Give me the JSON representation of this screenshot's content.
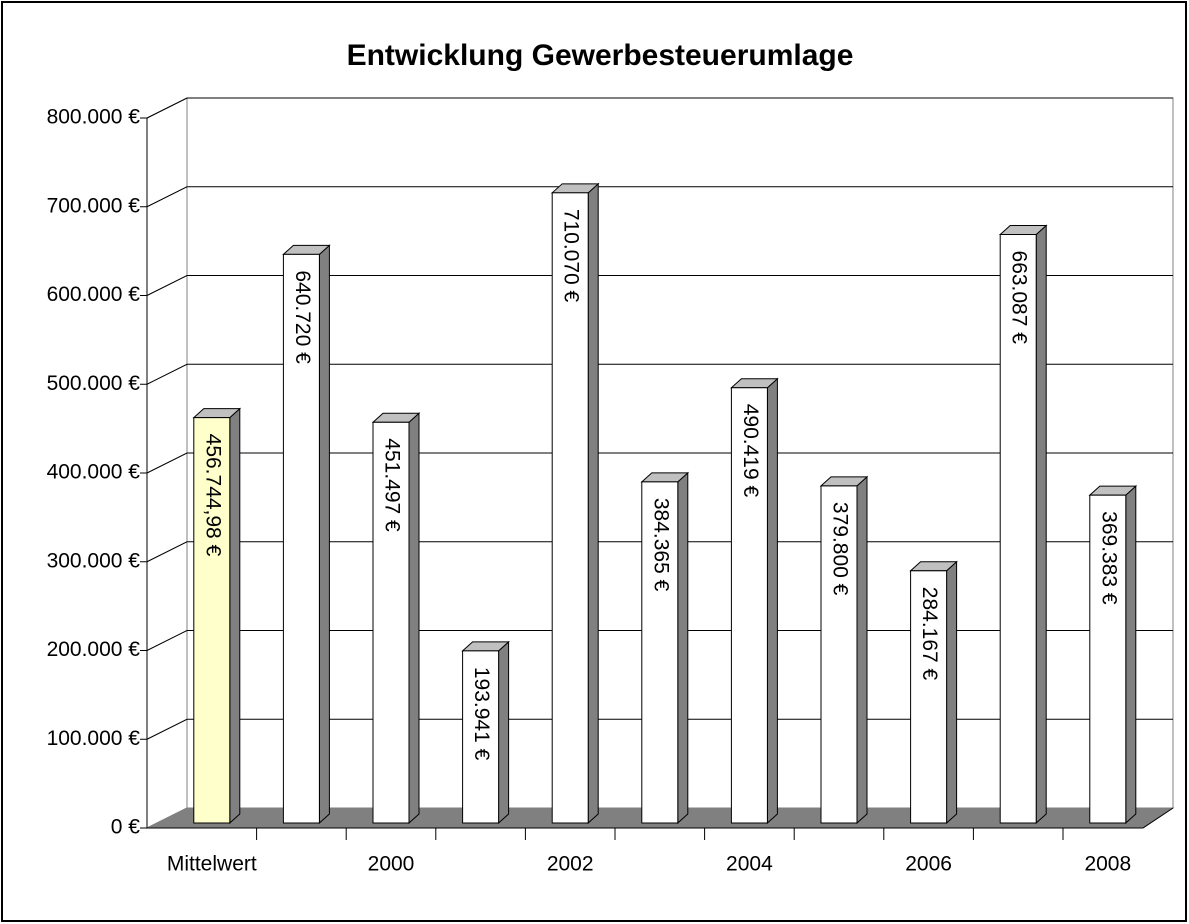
{
  "chart_data": {
    "type": "bar3d",
    "title": "Entwicklung Gewerbesteuerumlage",
    "categories": [
      "Mittelwert",
      null,
      "2000",
      null,
      "2002",
      null,
      "2004",
      null,
      "2006",
      null,
      "2008"
    ],
    "values": [
      456744.98,
      640720,
      451497,
      193941,
      710070,
      384365,
      490419,
      379800,
      284167,
      663087,
      369383
    ],
    "value_labels": [
      "456.744,98 €",
      "640.720 €",
      "451.497 €",
      "193.941 €",
      "710.070 €",
      "384.365 €",
      "490.419 €",
      "379.800 €",
      "284.167 €",
      "663.087 €",
      "369.383 €"
    ],
    "colors": [
      "#ffffcc",
      "#ffffff",
      "#ffffff",
      "#ffffff",
      "#ffffff",
      "#ffffff",
      "#ffffff",
      "#ffffff",
      "#ffffff",
      "#ffffff",
      "#ffffff"
    ],
    "ylim": [
      0,
      800000
    ],
    "yticks": [
      {
        "value": 0,
        "label": "0 €"
      },
      {
        "value": 100000,
        "label": "100.000 €"
      },
      {
        "value": 200000,
        "label": "200.000 €"
      },
      {
        "value": 300000,
        "label": "300.000 €"
      },
      {
        "value": 400000,
        "label": "400.000 €"
      },
      {
        "value": 500000,
        "label": "500.000 €"
      },
      {
        "value": 600000,
        "label": "600.000 €"
      },
      {
        "value": 700000,
        "label": "700.000 €"
      },
      {
        "value": 800000,
        "label": "800.000 €"
      }
    ],
    "grid": true
  }
}
